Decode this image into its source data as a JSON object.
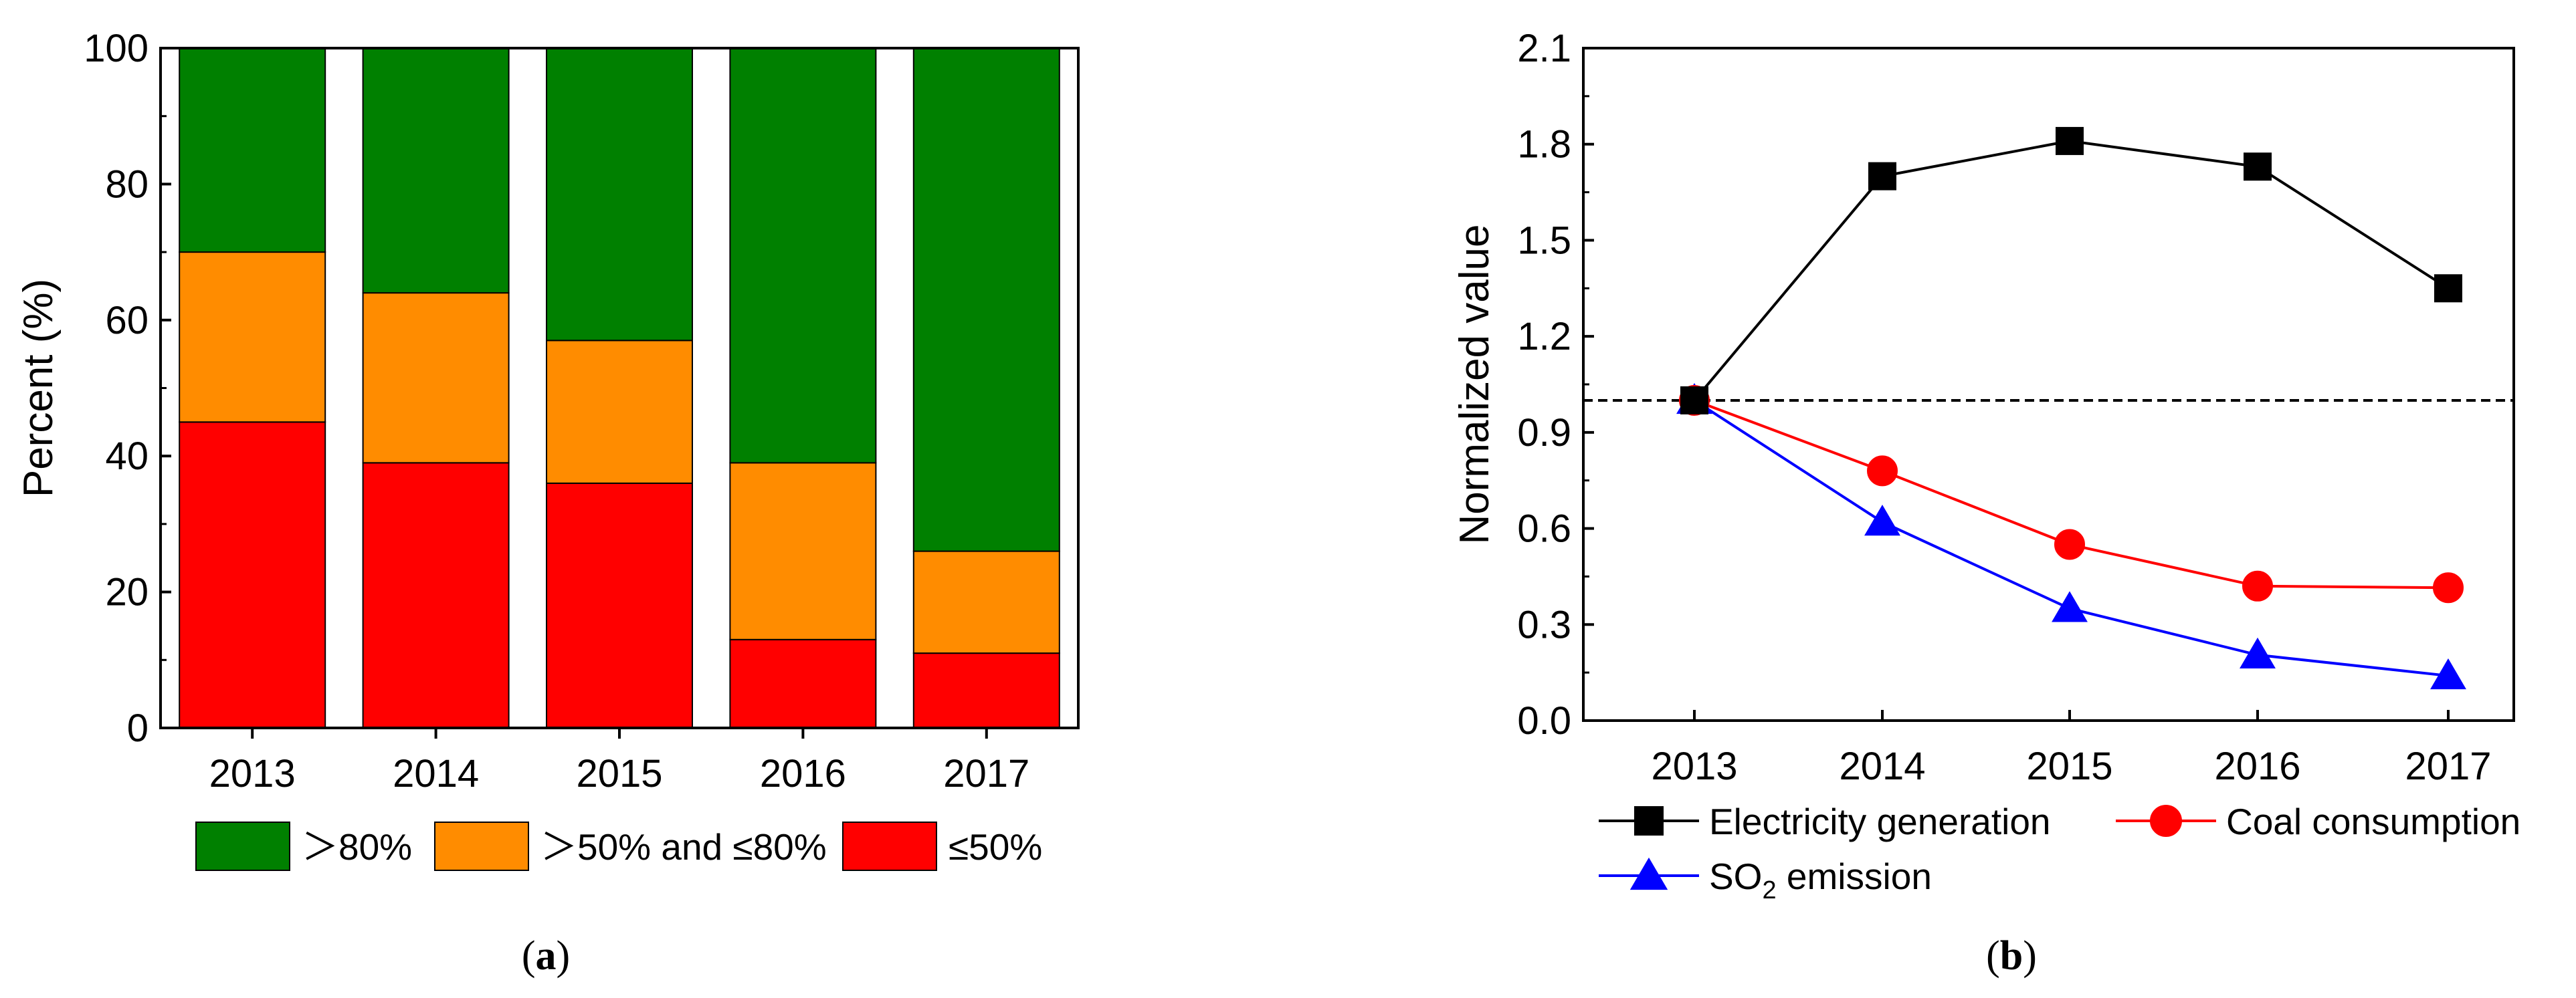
{
  "chart_data": [
    {
      "type": "bar",
      "stacked": true,
      "caption_prefix": "(",
      "caption_letter": "a",
      "caption_suffix": ")",
      "ylabel": "Percent (%)",
      "xlabel": "",
      "ylim": [
        0,
        100
      ],
      "yticks": [
        "0",
        "20",
        "40",
        "60",
        "80",
        "100"
      ],
      "categories": [
        "2013",
        "2014",
        "2015",
        "2016",
        "2017"
      ],
      "series": [
        {
          "name": "≤50%",
          "color": "#ff0000",
          "values": [
            45,
            39,
            36,
            13,
            11
          ]
        },
        {
          "name": "＞50% and ≤80%",
          "color": "#ff8c00",
          "values": [
            25,
            25,
            21,
            26,
            15
          ]
        },
        {
          "name": "＞80%",
          "color": "#008000",
          "values": [
            30,
            36,
            43,
            61,
            74
          ]
        }
      ],
      "legend_order": [
        "＞80%",
        "＞50% and ≤80%",
        "≤50%"
      ],
      "legend_position": "bottom"
    },
    {
      "type": "line",
      "caption_prefix": "(",
      "caption_letter": "b",
      "caption_suffix": ")",
      "ylabel": "Normalized value",
      "xlabel": "",
      "ylim": [
        0.0,
        2.1
      ],
      "yticks": [
        "0.0",
        "0.3",
        "0.6",
        "0.9",
        "1.2",
        "1.5",
        "1.8",
        "2.1"
      ],
      "categories": [
        "2013",
        "2014",
        "2015",
        "2016",
        "2017"
      ],
      "reference_line": 1.0,
      "series": [
        {
          "name": "Electricity generation",
          "color": "#000000",
          "marker": "square",
          "values": [
            1.0,
            1.7,
            1.81,
            1.73,
            1.35
          ]
        },
        {
          "name": "Coal consumption",
          "color": "#ff0000",
          "marker": "circle",
          "values": [
            1.0,
            0.78,
            0.55,
            0.42,
            0.415
          ]
        },
        {
          "name": "SO2 emission",
          "label_main": "SO",
          "label_sub": "2",
          "label_rest": " emission",
          "color": "#0000ff",
          "marker": "triangle",
          "values": [
            1.0,
            0.62,
            0.35,
            0.205,
            0.14
          ]
        }
      ],
      "legend_position": "bottom"
    }
  ]
}
